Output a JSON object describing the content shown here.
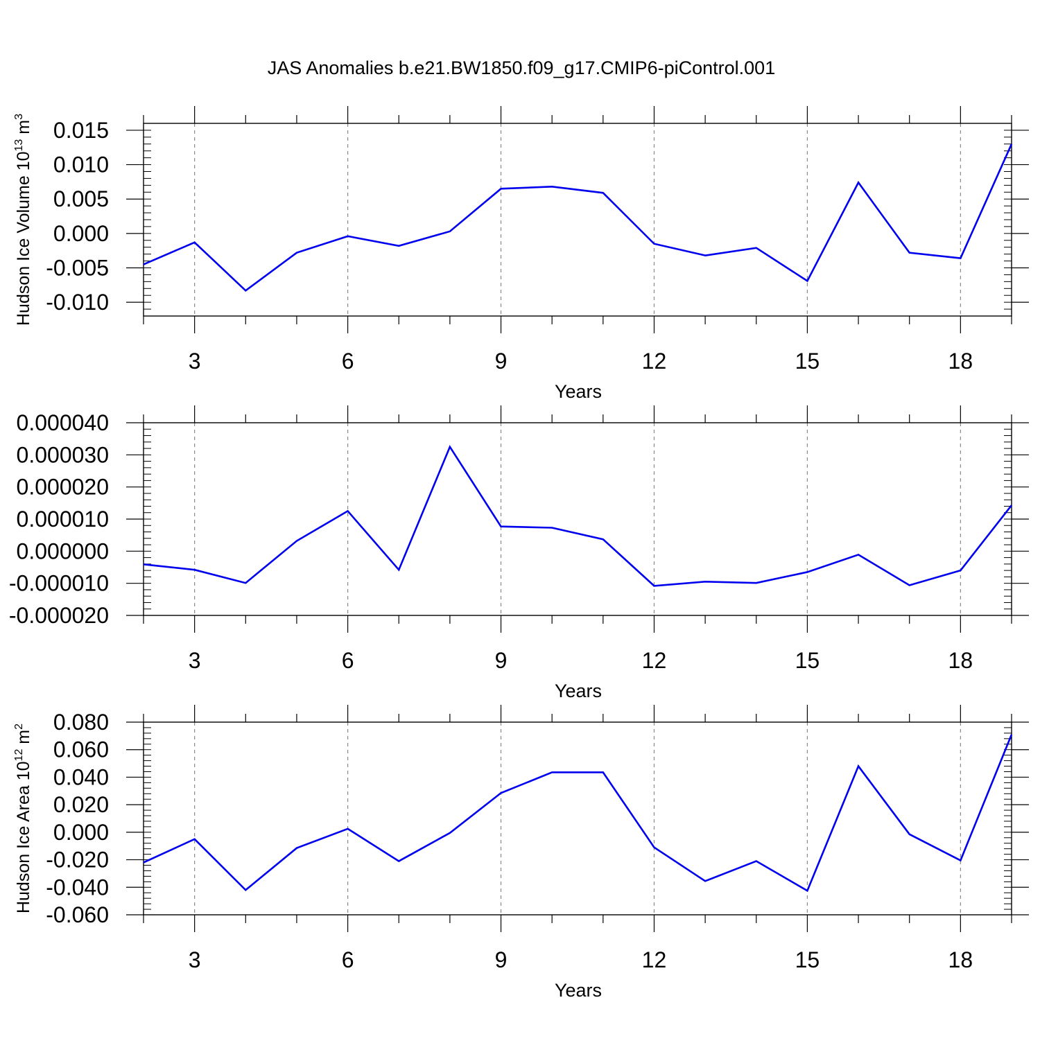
{
  "figure": {
    "title": "JAS Anomalies b.e21.BW1850.f09_g17.CMIP6-piControl.001"
  },
  "chart_data": [
    {
      "type": "line",
      "title": "JAS Anomalies b.e21.BW1850.f09_g17.CMIP6-piControl.001",
      "xlabel": "Years",
      "ylabel": {
        "base": "Hudson Ice Volume 10",
        "exp": "13",
        "unit": " m",
        "unit_exp": "3"
      },
      "xlim": [
        2,
        19
      ],
      "ylim": [
        -0.012,
        0.016
      ],
      "x_ticks": [
        3,
        6,
        9,
        12,
        15,
        18
      ],
      "x_tick_labels": [
        "3",
        "6",
        "9",
        "12",
        "15",
        "18"
      ],
      "y_ticks": [
        -0.01,
        -0.005,
        0.0,
        0.005,
        0.01,
        0.015
      ],
      "y_tick_labels": [
        "-0.010",
        "-0.005",
        "0.000",
        "0.005",
        "0.010",
        "0.015"
      ],
      "grid": "vertical dashed at major x ticks",
      "line_color": "#0000ee",
      "x": [
        2,
        3,
        4,
        5,
        6,
        7,
        8,
        9,
        10,
        11,
        12,
        13,
        14,
        15,
        16,
        17,
        18,
        19
      ],
      "series": [
        {
          "values": [
            -0.0045,
            -0.0013,
            -0.0083,
            -0.0028,
            -0.0004,
            -0.0018,
            0.0003,
            0.0065,
            0.0068,
            0.0059,
            -0.0015,
            -0.0032,
            -0.0021,
            -0.0069,
            0.0074,
            -0.0028,
            -0.0036,
            0.013
          ]
        }
      ]
    },
    {
      "type": "line",
      "xlabel": "Years",
      "ylabel": null,
      "xlim": [
        2,
        19
      ],
      "ylim": [
        -2e-05,
        4e-05
      ],
      "x_ticks": [
        3,
        6,
        9,
        12,
        15,
        18
      ],
      "x_tick_labels": [
        "3",
        "6",
        "9",
        "12",
        "15",
        "18"
      ],
      "y_ticks": [
        -2e-05,
        -1e-05,
        0.0,
        1e-05,
        2e-05,
        3e-05,
        4e-05
      ],
      "y_tick_labels": [
        "-0.000020",
        "-0.000010",
        "0.000000",
        "0.000010",
        "0.000020",
        "0.000030",
        "0.000040"
      ],
      "grid": "vertical dashed at major x ticks",
      "line_color": "#0000ee",
      "x": [
        2,
        3,
        4,
        5,
        6,
        7,
        8,
        9,
        10,
        11,
        12,
        13,
        14,
        15,
        16,
        17,
        18,
        19
      ],
      "series": [
        {
          "values": [
            -4.1e-06,
            -5.8e-06,
            -9.9e-06,
            3.2e-06,
            1.25e-05,
            -5.8e-06,
            3.25e-05,
            7.7e-06,
            7.3e-06,
            3.7e-06,
            -1.08e-05,
            -9.5e-06,
            -9.9e-06,
            -6.5e-06,
            -1.1e-06,
            -1.06e-05,
            -6e-06,
            1.43e-05
          ]
        }
      ]
    },
    {
      "type": "line",
      "xlabel": "Years",
      "ylabel": {
        "base": "Hudson Ice Area 10",
        "exp": "12",
        "unit": " m",
        "unit_exp": "2"
      },
      "xlim": [
        2,
        19
      ],
      "ylim": [
        -0.06,
        0.08
      ],
      "x_ticks": [
        3,
        6,
        9,
        12,
        15,
        18
      ],
      "x_tick_labels": [
        "3",
        "6",
        "9",
        "12",
        "15",
        "18"
      ],
      "y_ticks": [
        -0.06,
        -0.04,
        -0.02,
        0.0,
        0.02,
        0.04,
        0.06,
        0.08
      ],
      "y_tick_labels": [
        "-0.060",
        "-0.040",
        "-0.020",
        "0.000",
        "0.020",
        "0.040",
        "0.060",
        "0.080"
      ],
      "grid": "vertical dashed at major x ticks",
      "line_color": "#0000ee",
      "x": [
        2,
        3,
        4,
        5,
        6,
        7,
        8,
        9,
        10,
        11,
        12,
        13,
        14,
        15,
        16,
        17,
        18,
        19
      ],
      "series": [
        {
          "values": [
            -0.022,
            -0.005,
            -0.042,
            -0.0115,
            0.0025,
            -0.021,
            -0.0005,
            0.0285,
            0.0435,
            0.0435,
            -0.011,
            -0.0355,
            -0.021,
            -0.0425,
            0.048,
            -0.0015,
            -0.0205,
            0.071
          ]
        }
      ]
    }
  ]
}
